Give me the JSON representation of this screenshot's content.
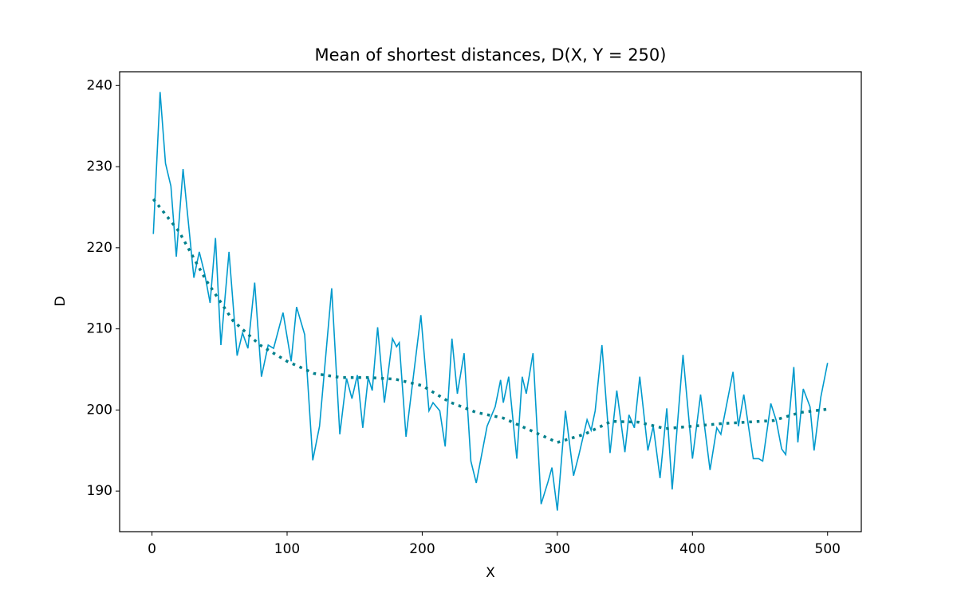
{
  "chart_data": {
    "type": "line",
    "title": "Mean of shortest distances, D(X, Y = 250)",
    "xlabel": "X",
    "ylabel": "D",
    "xlim": [
      -23.95,
      524.95
    ],
    "ylim": [
      185,
      241.7
    ],
    "xticks": [
      0,
      100,
      200,
      300,
      400,
      500
    ],
    "yticks": [
      190,
      200,
      210,
      220,
      230,
      240
    ],
    "grid": false,
    "series": [
      {
        "color": "#009acd",
        "linestyle": "solid",
        "x": [
          1,
          6,
          10,
          14,
          18,
          23,
          31,
          35,
          39,
          43,
          47,
          51,
          57,
          63,
          67,
          71,
          76,
          81,
          86,
          90,
          97,
          103,
          107,
          113,
          119,
          124,
          133,
          139,
          144,
          148,
          152,
          156,
          160,
          163,
          167,
          172,
          178,
          181,
          183,
          188,
          199,
          205,
          208,
          213,
          217,
          222,
          226,
          231,
          236,
          240,
          248,
          254,
          258,
          260,
          264,
          270,
          274,
          277,
          282,
          288,
          293,
          296,
          300,
          306,
          312,
          316,
          322,
          325,
          328,
          333,
          339,
          344,
          350,
          353,
          357,
          361,
          367,
          371,
          376,
          381,
          385,
          393,
          400,
          406,
          413,
          418,
          421,
          430,
          434,
          438,
          445,
          449,
          452,
          458,
          462,
          466,
          469,
          475,
          478,
          482,
          487,
          490,
          495,
          500
        ],
        "values": [
          221.7,
          239.2,
          230.4,
          227.6,
          218.9,
          229.7,
          216.3,
          219.5,
          216.8,
          213.2,
          221.2,
          208,
          219.5,
          206.7,
          209.5,
          207.6,
          215.7,
          204.1,
          208,
          207.6,
          212,
          206,
          212.7,
          209.3,
          193.8,
          198,
          215,
          197,
          203.9,
          201.4,
          204.3,
          197.8,
          204,
          202.4,
          210.2,
          200.9,
          208.8,
          207.8,
          208.3,
          196.7,
          211.7,
          199.9,
          200.9,
          199.9,
          195.5,
          208.8,
          202,
          207,
          193.7,
          191,
          198,
          200.4,
          203.7,
          200.9,
          204.1,
          194,
          204.1,
          202,
          207,
          188.4,
          191.1,
          192.9,
          187.6,
          199.9,
          191.9,
          194.5,
          198.8,
          197.5,
          199.9,
          208,
          194.7,
          202.4,
          194.8,
          199.4,
          197.8,
          204.1,
          195,
          198,
          191.6,
          200.2,
          190.2,
          206.8,
          194,
          201.9,
          192.6,
          197.8,
          197,
          204.7,
          198,
          201.9,
          194,
          194,
          193.7,
          200.8,
          198.7,
          195.2,
          194.5,
          205.3,
          196,
          202.6,
          200.4,
          195,
          201.6,
          205.8
        ]
      },
      {
        "color": "#00808c",
        "linestyle": "dotted",
        "x": [
          1,
          20,
          40,
          60,
          80,
          100,
          120,
          140,
          160,
          180,
          200,
          220,
          240,
          260,
          280,
          300,
          320,
          340,
          360,
          380,
          400,
          420,
          440,
          460,
          480,
          500
        ],
        "values": [
          226,
          222,
          216,
          211,
          208,
          206,
          204.5,
          204,
          204,
          203.8,
          203,
          201,
          199.7,
          199,
          197.5,
          196,
          197,
          198.6,
          198.5,
          197.7,
          198,
          198.3,
          198.5,
          198.7,
          199.7,
          200.1
        ]
      }
    ]
  }
}
